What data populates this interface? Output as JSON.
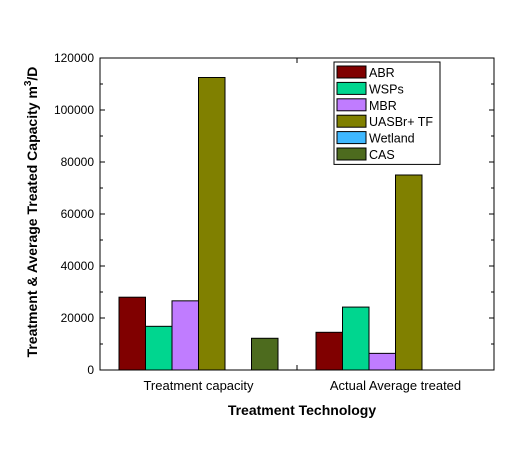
{
  "chart_data": {
    "type": "bar",
    "categories": [
      "Treatment capacity",
      "Actual  Average treated"
    ],
    "series": [
      {
        "name": "ABR",
        "color": "#800000",
        "values": [
          28000,
          14500
        ]
      },
      {
        "name": "WSPs",
        "color": "#00d68f",
        "values": [
          16800,
          24200
        ]
      },
      {
        "name": "MBR",
        "color": "#c07cff",
        "values": [
          26600,
          6400
        ]
      },
      {
        "name": "UASBr+ TF",
        "color": "#808000",
        "values": [
          112500,
          75000
        ]
      },
      {
        "name": " Wetland",
        "color": "#3fb8ff",
        "values": [
          0,
          0
        ]
      },
      {
        "name": "CAS",
        "color": "#4d6b1e",
        "values": [
          12200,
          0
        ]
      }
    ],
    "xlabel": "Treatment Technology",
    "ylabel": "Treatment & Average Treated Capacity m",
    "ylabel_sup": "3",
    "ylabel_suffix": "/D",
    "ylim": [
      0,
      120000
    ],
    "yticks": [
      0,
      20000,
      40000,
      60000,
      80000,
      100000,
      120000
    ],
    "grid": false,
    "legend_position": "top-right"
  }
}
